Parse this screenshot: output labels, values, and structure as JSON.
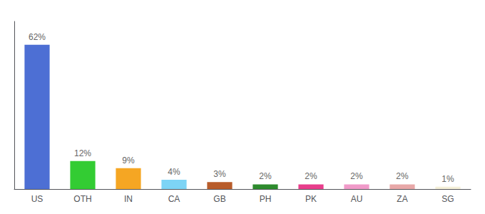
{
  "chart_data": {
    "type": "bar",
    "categories": [
      "US",
      "OTH",
      "IN",
      "CA",
      "GB",
      "PH",
      "PK",
      "AU",
      "ZA",
      "SG"
    ],
    "values": [
      62,
      12,
      9,
      4,
      3,
      2,
      2,
      2,
      2,
      1
    ],
    "value_labels": [
      "62%",
      "12%",
      "9%",
      "4%",
      "3%",
      "2%",
      "2%",
      "2%",
      "2%",
      "1%"
    ],
    "colors": [
      "#4d6fd4",
      "#33cc33",
      "#f5a623",
      "#7dd4f5",
      "#b85c2a",
      "#2d8b2d",
      "#e83e8c",
      "#f09ac9",
      "#e8a8a8",
      "#f5f0d8"
    ],
    "ylim": [
      0,
      72
    ],
    "data_labels": true,
    "tick_labels": "x",
    "grid": false
  }
}
